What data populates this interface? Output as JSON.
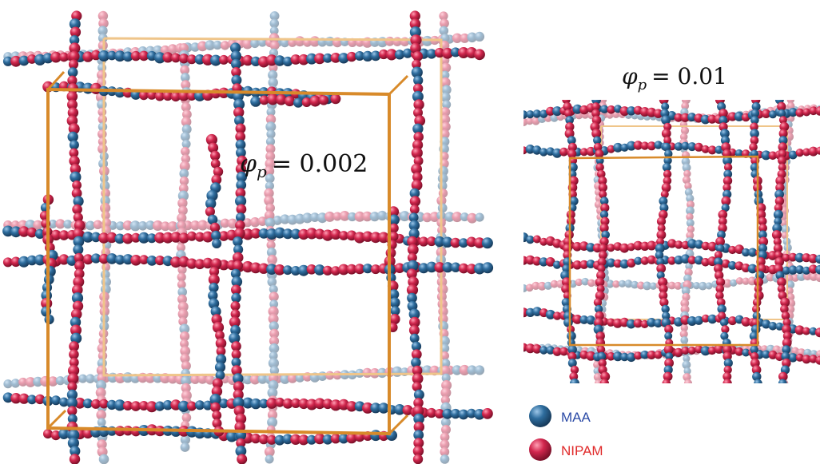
{
  "panels": [
    {
      "id": "left",
      "label_symbol": "φ",
      "label_subscript": "p",
      "label_value": "= 0.002"
    },
    {
      "id": "right",
      "label_symbol": "φ",
      "label_subscript": "p",
      "label_value": "= 0.01"
    }
  ],
  "legend": [
    {
      "label": "MAA",
      "color": "#2e6d9e",
      "text_color": "#2b4aa6",
      "icon": "blue-bead-icon"
    },
    {
      "label": "NIPAM",
      "color": "#d2274e",
      "text_color": "#e02a2a",
      "icon": "red-bead-icon"
    }
  ],
  "colors": {
    "maa": "#2e6d9e",
    "nipam": "#d2274e",
    "frame_front": "#d88a2a",
    "frame_back": "#efc58a"
  }
}
